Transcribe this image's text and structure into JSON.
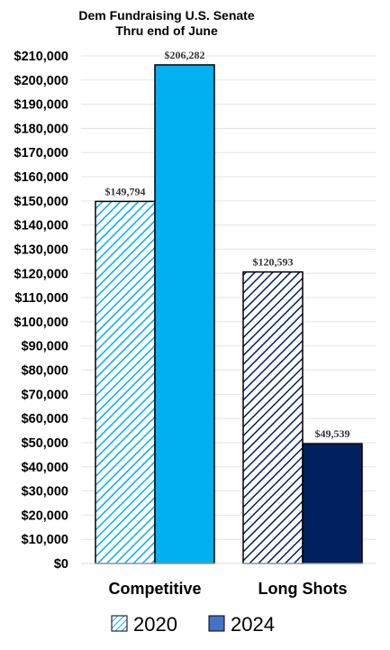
{
  "chart_data": {
    "type": "bar",
    "title": "Dem Fundraising U.S. Senate",
    "subtitle": "Thru end of June",
    "categories": [
      "Competitive",
      "Long Shots"
    ],
    "series": [
      {
        "name": "2020",
        "values": [
          149794,
          120593
        ],
        "value_labels": [
          "$149,794",
          "$120,593"
        ],
        "colors": [
          "#00b0f0",
          "#002060"
        ],
        "fill": "hatched"
      },
      {
        "name": "2024",
        "values": [
          206282,
          49539
        ],
        "value_labels": [
          "$206,282",
          "$49,539"
        ],
        "colors": [
          "#00b0f0",
          "#002060"
        ],
        "fill": "solid"
      }
    ],
    "ylim": [
      0,
      210000
    ],
    "ytick_step": 10000,
    "ytick_labels": [
      "$0",
      "$10,000",
      "$20,000",
      "$30,000",
      "$40,000",
      "$50,000",
      "$60,000",
      "$70,000",
      "$80,000",
      "$90,000",
      "$100,000",
      "$110,000",
      "$120,000",
      "$130,000",
      "$140,000",
      "$150,000",
      "$160,000",
      "$170,000",
      "$180,000",
      "$190,000",
      "$200,000",
      "$210,000"
    ],
    "grid": true,
    "legend_position": "bottom",
    "legend_colors": {
      "2020": "#00b0f0",
      "2024": "#4472c4"
    }
  }
}
